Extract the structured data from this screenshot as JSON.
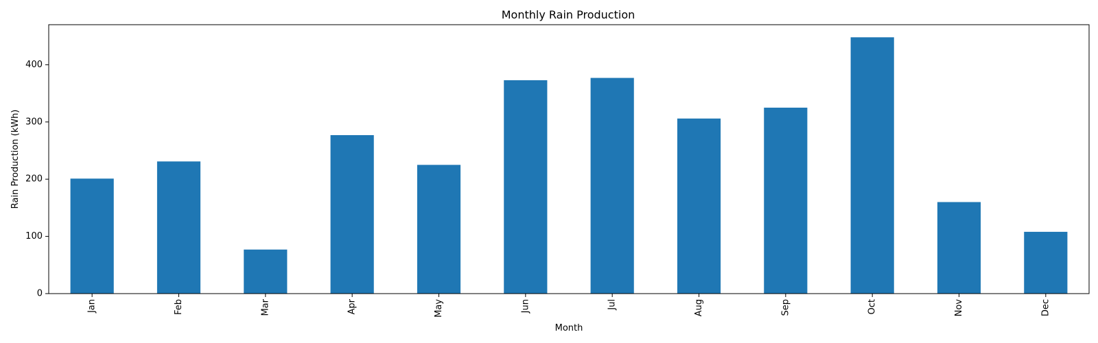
{
  "chart_data": {
    "type": "bar",
    "title": "Monthly Rain Production",
    "xlabel": "Month",
    "ylabel": "Rain Production (kWh)",
    "categories": [
      "Jan",
      "Feb",
      "Mar",
      "Apr",
      "May",
      "Jun",
      "Jul",
      "Aug",
      "Sep",
      "Oct",
      "Nov",
      "Dec"
    ],
    "values": [
      201,
      231,
      77,
      277,
      225,
      373,
      377,
      306,
      325,
      448,
      160,
      108
    ],
    "ylim": [
      0,
      470
    ],
    "yticks": [
      0,
      100,
      200,
      300,
      400
    ],
    "bar_color": "#1f77b4",
    "grid": false,
    "legend": "none",
    "x_tick_rotation": "vertical"
  }
}
